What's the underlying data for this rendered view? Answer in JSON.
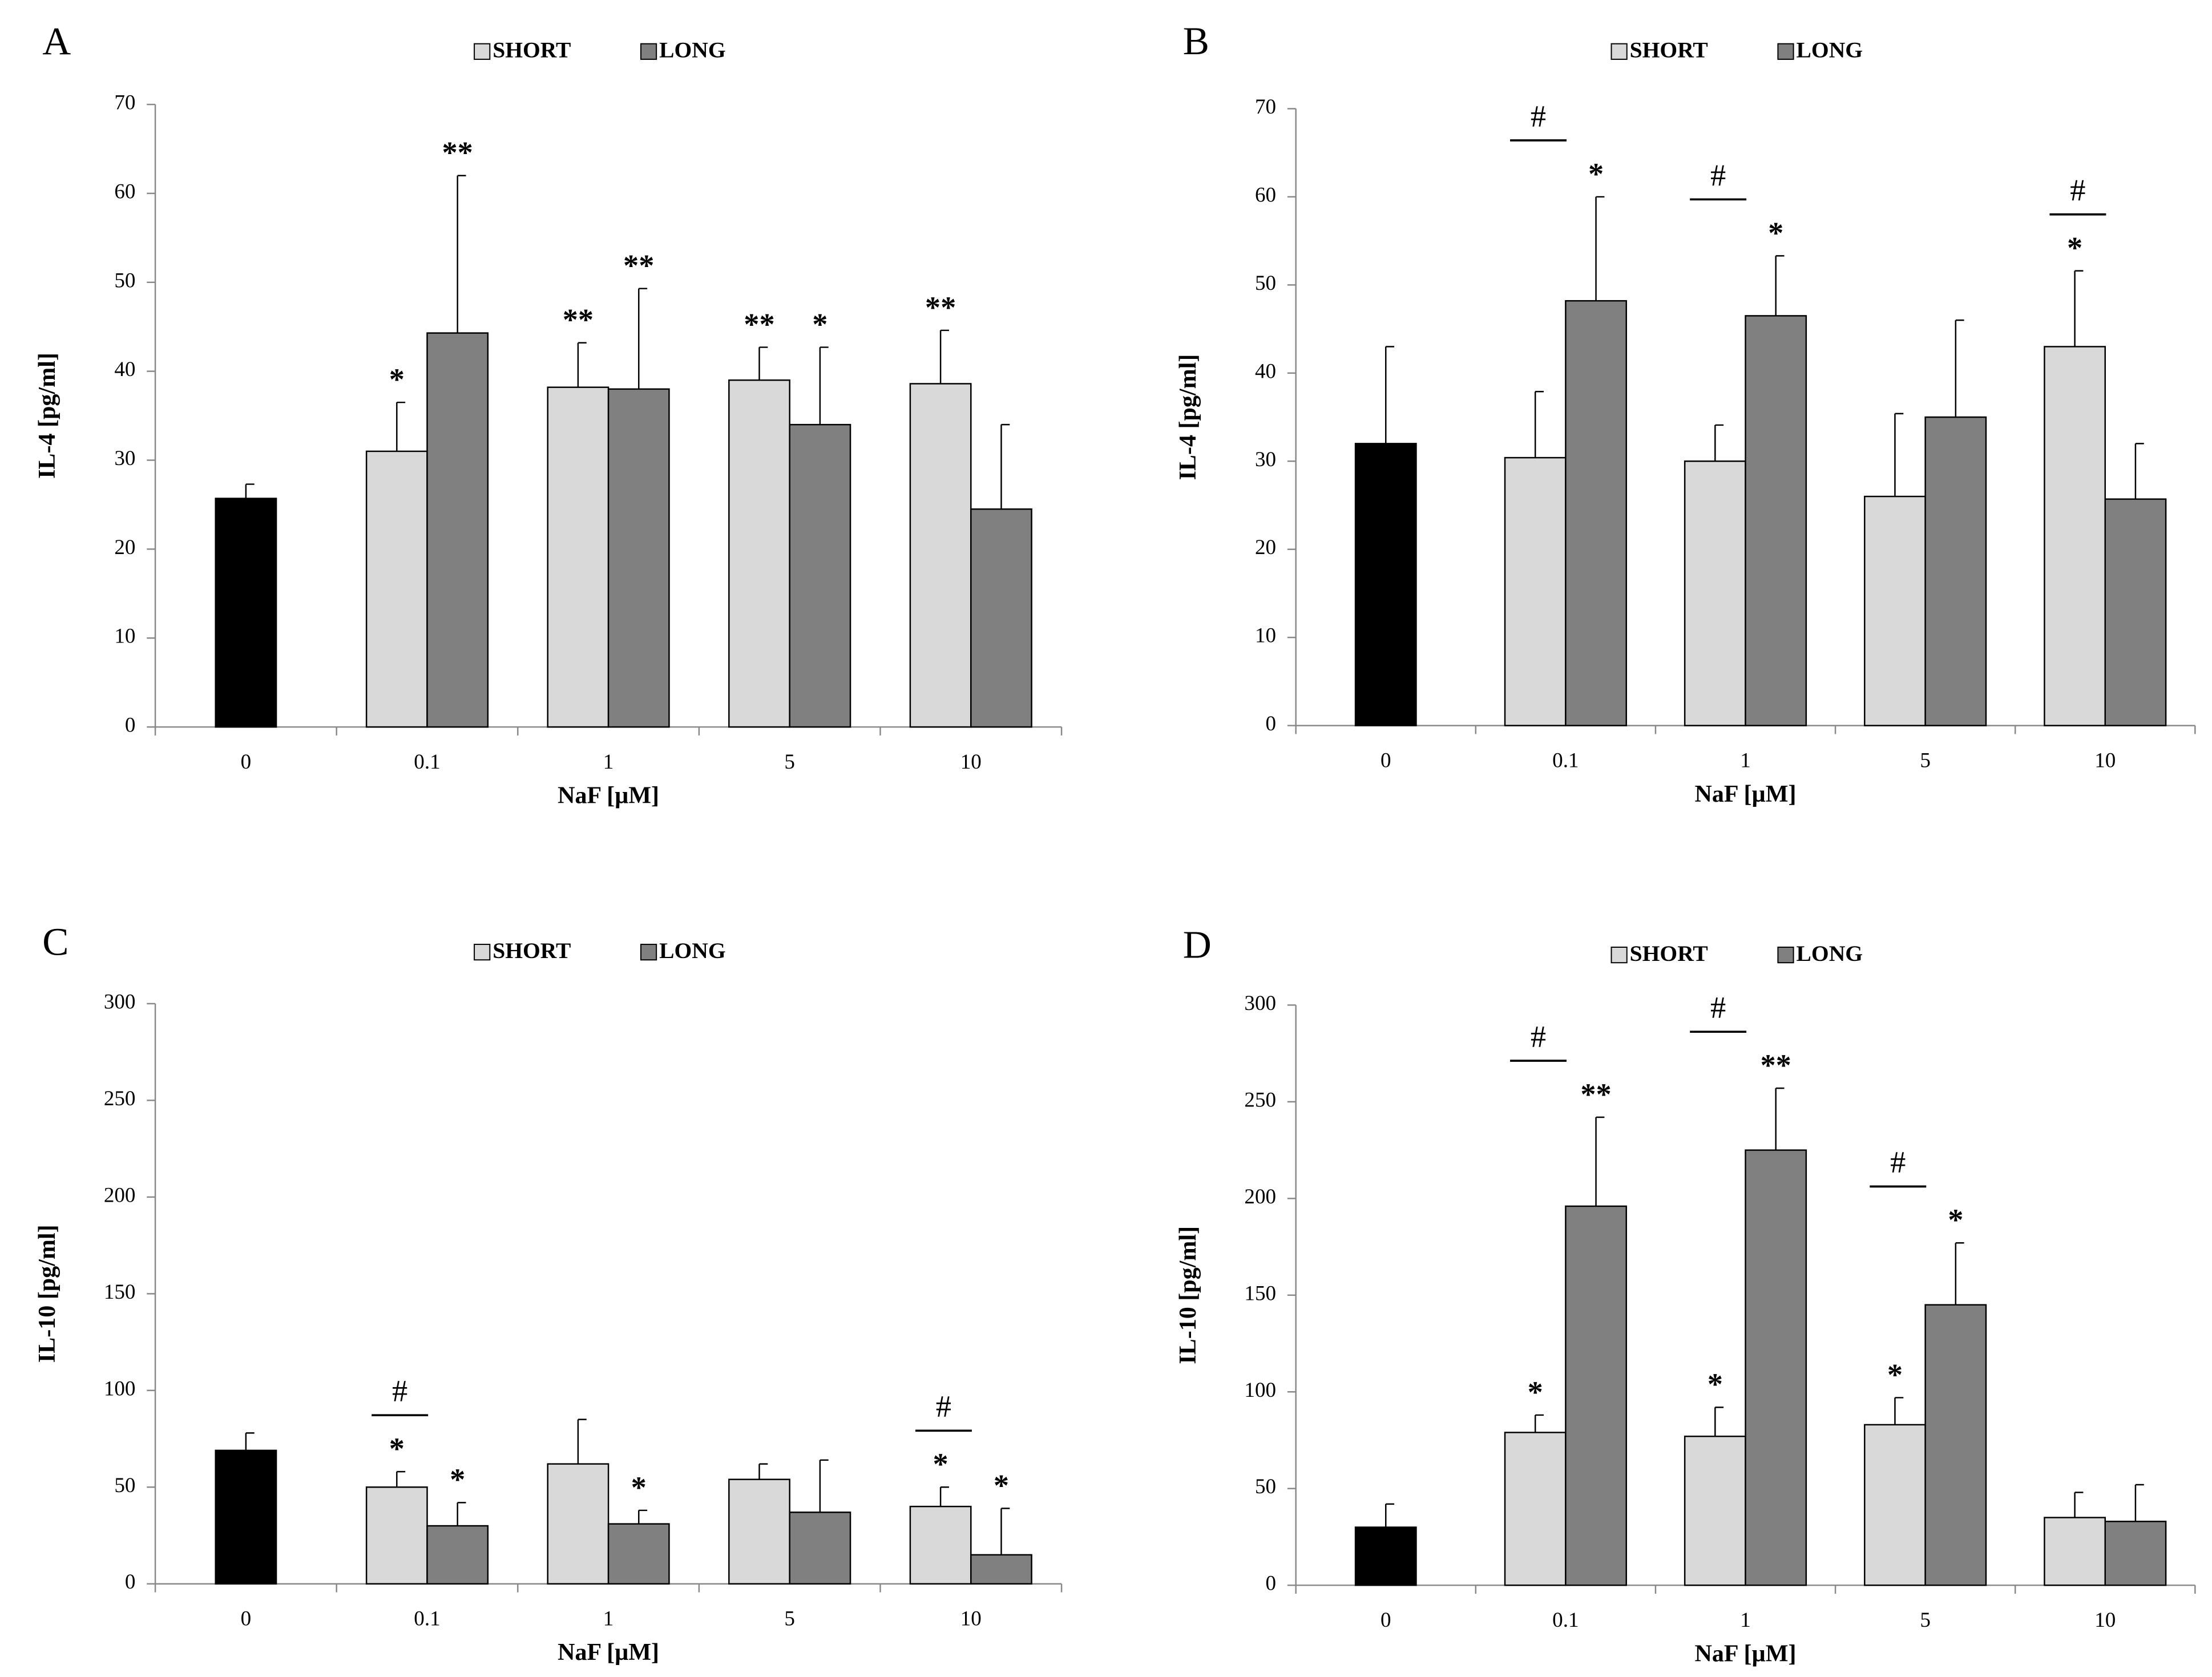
{
  "chart_data": [
    {
      "type": "bar",
      "panel": "A",
      "ylabel": "IL-4 [pg/ml]",
      "xlabel": "NaF [µM]",
      "categories": [
        "0",
        "0.1",
        "1",
        "5",
        "10"
      ],
      "ylim": [
        0,
        70
      ],
      "yticks": [
        0,
        10,
        20,
        30,
        40,
        50,
        60,
        70
      ],
      "series": [
        {
          "color": "#000000",
          "values": [
            25.7,
            null,
            null,
            null,
            null
          ],
          "errors": [
            1.6,
            null,
            null,
            null,
            null
          ]
        },
        {
          "name": "SHORT",
          "color": "#d9d9d9",
          "values": [
            null,
            31,
            38.2,
            39,
            38.6
          ],
          "errors": [
            null,
            5.5,
            5,
            3.7,
            6
          ],
          "labels": [
            null,
            "*",
            "**",
            "**",
            "**"
          ]
        },
        {
          "name": "LONG",
          "color": "#808080",
          "values": [
            null,
            44.3,
            38,
            34,
            24.5
          ],
          "errors": [
            null,
            17.7,
            11.3,
            8.7,
            9.5
          ],
          "labels": [
            null,
            "**",
            "**",
            "*",
            null
          ]
        }
      ]
    },
    {
      "type": "bar",
      "panel": "B",
      "ylabel": "IL-4 [pg/ml]",
      "xlabel": "NaF [µM]",
      "categories": [
        "0",
        "0.1",
        "1",
        "5",
        "10"
      ],
      "ylim": [
        0,
        70
      ],
      "yticks": [
        0,
        10,
        20,
        30,
        40,
        50,
        60,
        70
      ],
      "brackets": [
        null,
        "#",
        "#",
        null,
        "#"
      ],
      "series": [
        {
          "color": "#000000",
          "values": [
            32,
            null,
            null,
            null,
            null
          ],
          "errors": [
            11,
            null,
            null,
            null,
            null
          ]
        },
        {
          "name": "SHORT",
          "color": "#d9d9d9",
          "values": [
            null,
            30.4,
            30,
            26,
            43
          ],
          "errors": [
            null,
            7.5,
            4.1,
            9.4,
            8.6
          ],
          "labels": [
            null,
            null,
            null,
            null,
            "*"
          ]
        },
        {
          "name": "LONG",
          "color": "#808080",
          "values": [
            null,
            48.2,
            46.5,
            35,
            25.7
          ],
          "errors": [
            null,
            11.8,
            6.8,
            11,
            6.3
          ],
          "labels": [
            null,
            "*",
            "*",
            null,
            null
          ]
        }
      ]
    },
    {
      "type": "bar",
      "panel": "C",
      "ylabel": "IL-10 [pg/ml]",
      "xlabel": "NaF [µM]",
      "categories": [
        "0",
        "0.1",
        "1",
        "5",
        "10"
      ],
      "ylim": [
        0,
        300
      ],
      "yticks": [
        0,
        50,
        100,
        150,
        200,
        250,
        300
      ],
      "brackets": [
        null,
        "#",
        null,
        null,
        "#"
      ],
      "series": [
        {
          "color": "#000000",
          "values": [
            69,
            null,
            null,
            null,
            null
          ],
          "errors": [
            9,
            null,
            null,
            null,
            null
          ]
        },
        {
          "name": "SHORT",
          "color": "#d9d9d9",
          "values": [
            null,
            50,
            62,
            54,
            40
          ],
          "errors": [
            null,
            8,
            23,
            8,
            10
          ],
          "labels": [
            null,
            "*",
            null,
            null,
            "*"
          ]
        },
        {
          "name": "LONG",
          "color": "#808080",
          "values": [
            null,
            30,
            31,
            37,
            15
          ],
          "errors": [
            null,
            12,
            7,
            27,
            24
          ],
          "labels": [
            null,
            "*",
            "*",
            null,
            "*"
          ]
        }
      ]
    },
    {
      "type": "bar",
      "panel": "D",
      "ylabel": "IL-10 [pg/ml]",
      "xlabel": "NaF [µM]",
      "categories": [
        "0",
        "0.1",
        "1",
        "5",
        "10"
      ],
      "ylim": [
        0,
        300
      ],
      "yticks": [
        0,
        50,
        100,
        150,
        200,
        250,
        300
      ],
      "brackets": [
        null,
        "#",
        "#",
        "#",
        null
      ],
      "series": [
        {
          "color": "#000000",
          "values": [
            30,
            null,
            null,
            null,
            null
          ],
          "errors": [
            12,
            null,
            null,
            null,
            null
          ]
        },
        {
          "name": "SHORT",
          "color": "#d9d9d9",
          "values": [
            null,
            79,
            77,
            83,
            35
          ],
          "errors": [
            null,
            9,
            15,
            14,
            13
          ],
          "labels": [
            null,
            "*",
            "*",
            "*",
            null
          ]
        },
        {
          "name": "LONG",
          "color": "#808080",
          "values": [
            null,
            196,
            225,
            145,
            33
          ],
          "errors": [
            null,
            46,
            32,
            32,
            19
          ],
          "labels": [
            null,
            "**",
            "**",
            "*",
            null
          ]
        }
      ]
    }
  ]
}
